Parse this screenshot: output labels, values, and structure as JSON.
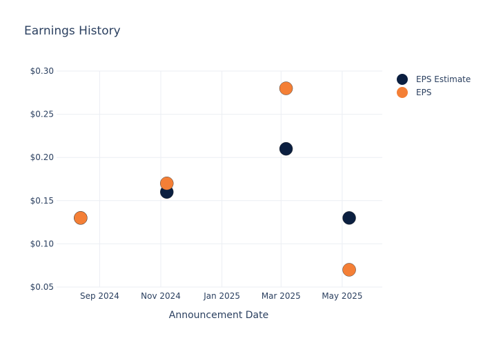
{
  "chart_data": {
    "type": "scatter",
    "title": "Earnings History",
    "xlabel": "Announcement Date",
    "ylabel": "",
    "x_ticks": [
      {
        "date": "2024-09-01",
        "label": "Sep 2024"
      },
      {
        "date": "2024-11-01",
        "label": "Nov 2024"
      },
      {
        "date": "2025-01-01",
        "label": "Jan 2025"
      },
      {
        "date": "2025-03-01",
        "label": "Mar 2025"
      },
      {
        "date": "2025-05-01",
        "label": "May 2025"
      }
    ],
    "xlim": [
      "2024-07-20",
      "2025-06-10"
    ],
    "y_ticks": [
      {
        "value": 0.05,
        "label": "$0.05"
      },
      {
        "value": 0.1,
        "label": "$0.10"
      },
      {
        "value": 0.15,
        "label": "$0.15"
      },
      {
        "value": 0.2,
        "label": "$0.20"
      },
      {
        "value": 0.25,
        "label": "$0.25"
      },
      {
        "value": 0.3,
        "label": "$0.30"
      }
    ],
    "ylim": [
      0.05,
      0.3
    ],
    "grid": true,
    "legend_position": "top-right",
    "series": [
      {
        "name": "EPS Estimate",
        "color": "#0b1f40",
        "points": [
          {
            "x": "2024-08-13",
            "y": 0.13
          },
          {
            "x": "2024-11-07",
            "y": 0.16
          },
          {
            "x": "2025-03-06",
            "y": 0.21
          },
          {
            "x": "2025-05-08",
            "y": 0.13
          }
        ]
      },
      {
        "name": "EPS",
        "color": "#f47f36",
        "points": [
          {
            "x": "2024-08-13",
            "y": 0.13
          },
          {
            "x": "2024-11-07",
            "y": 0.17
          },
          {
            "x": "2025-03-06",
            "y": 0.28
          },
          {
            "x": "2025-05-08",
            "y": 0.07
          }
        ]
      }
    ]
  }
}
